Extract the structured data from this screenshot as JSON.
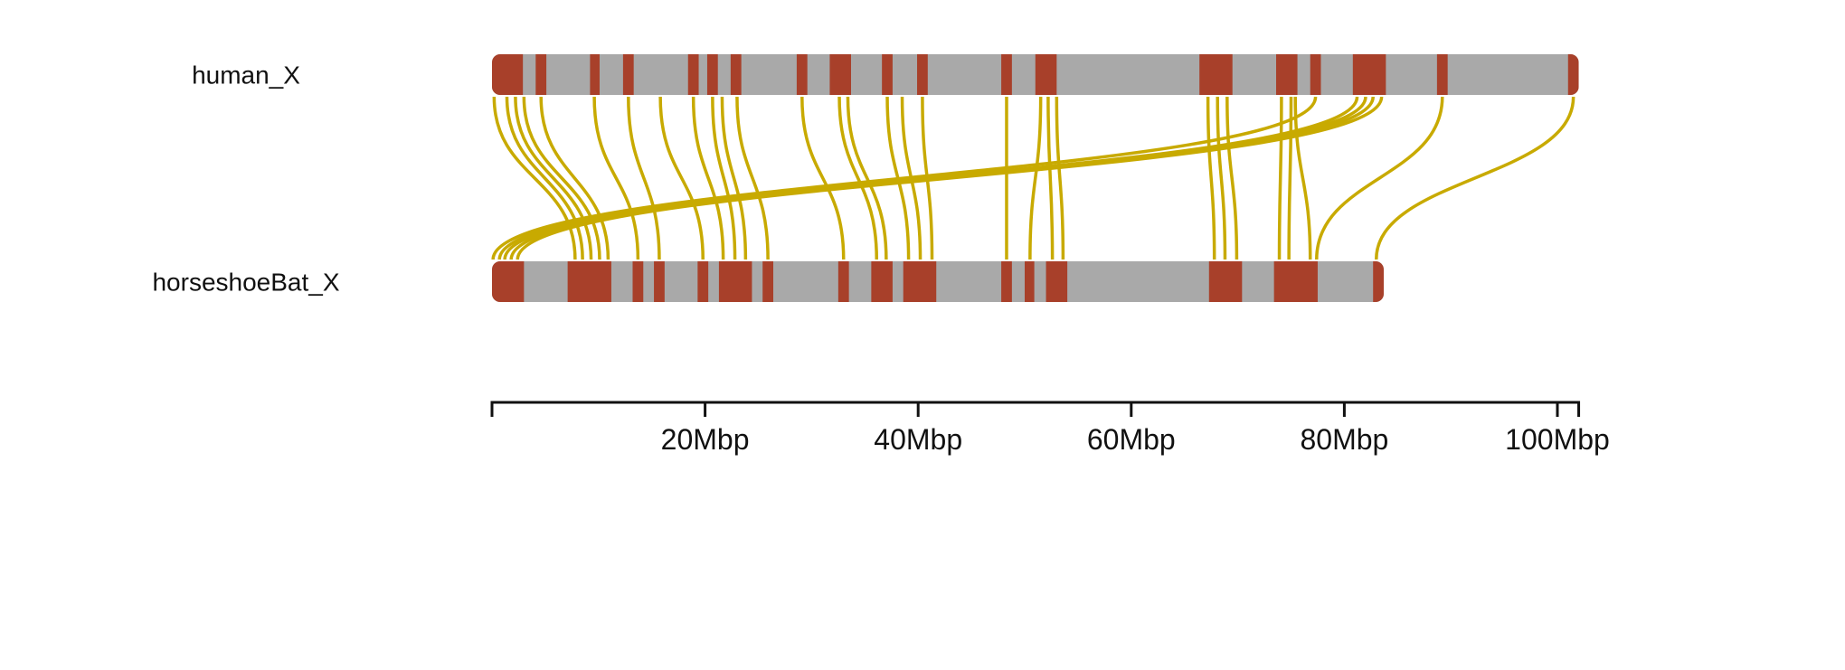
{
  "colors": {
    "chromosome_fill": "#a9a9a9",
    "highlight_block": "#a8402a",
    "link": "#c8aa00",
    "axis": "#111111"
  },
  "chart_data": {
    "type": "synteny",
    "axis": {
      "unit": "Mbp",
      "range": [
        0,
        102
      ],
      "ticks": [
        0,
        20,
        40,
        60,
        80,
        100,
        102
      ],
      "tick_labels": [
        {
          "value": 20,
          "label": "20Mbp"
        },
        {
          "value": 40,
          "label": "40Mbp"
        },
        {
          "value": 60,
          "label": "60Mbp"
        },
        {
          "value": 80,
          "label": "80Mbp"
        },
        {
          "value": 100,
          "label": "100Mbp"
        }
      ]
    },
    "chromosomes": [
      {
        "name": "human_X",
        "length": 102,
        "blocks": [
          [
            0,
            2.9
          ],
          [
            4.1,
            5.1
          ],
          [
            9.2,
            10.1
          ],
          [
            12.3,
            13.3
          ],
          [
            18.4,
            19.4
          ],
          [
            20.2,
            21.2
          ],
          [
            22.4,
            23.4
          ],
          [
            28.6,
            29.6
          ],
          [
            31.7,
            33.7
          ],
          [
            36.6,
            37.6
          ],
          [
            39.9,
            40.9
          ],
          [
            47.8,
            48.8
          ],
          [
            51.0,
            53.0
          ],
          [
            66.4,
            69.5
          ],
          [
            73.6,
            75.6
          ],
          [
            76.8,
            77.8
          ],
          [
            80.8,
            83.9
          ],
          [
            88.7,
            89.7
          ],
          [
            101.0,
            102.0
          ]
        ]
      },
      {
        "name": "horseshoeBat_X",
        "length": 83.7,
        "blocks": [
          [
            0,
            3.0
          ],
          [
            7.1,
            11.2
          ],
          [
            13.2,
            14.2
          ],
          [
            15.2,
            16.2
          ],
          [
            19.3,
            20.3
          ],
          [
            21.3,
            24.4
          ],
          [
            25.4,
            26.4
          ],
          [
            32.5,
            33.5
          ],
          [
            35.6,
            37.6
          ],
          [
            38.6,
            41.7
          ],
          [
            47.8,
            48.8
          ],
          [
            50.0,
            50.9
          ],
          [
            52.0,
            54.0
          ],
          [
            67.3,
            70.4
          ],
          [
            73.4,
            77.5
          ],
          [
            82.7,
            83.7
          ]
        ]
      }
    ],
    "links": [
      {
        "a": 0.2,
        "b": 7.8
      },
      {
        "a": 1.4,
        "b": 8.5
      },
      {
        "a": 2.2,
        "b": 9.3
      },
      {
        "a": 3.0,
        "b": 10.1
      },
      {
        "a": 4.6,
        "b": 10.9
      },
      {
        "a": 9.6,
        "b": 13.7
      },
      {
        "a": 12.8,
        "b": 15.7
      },
      {
        "a": 15.8,
        "b": 19.8
      },
      {
        "a": 18.9,
        "b": 21.7
      },
      {
        "a": 20.7,
        "b": 22.8
      },
      {
        "a": 21.6,
        "b": 23.8
      },
      {
        "a": 23.0,
        "b": 25.9
      },
      {
        "a": 29.1,
        "b": 33.0
      },
      {
        "a": 32.6,
        "b": 36.1
      },
      {
        "a": 33.4,
        "b": 37.0
      },
      {
        "a": 37.1,
        "b": 39.1
      },
      {
        "a": 38.5,
        "b": 40.2
      },
      {
        "a": 40.4,
        "b": 41.3
      },
      {
        "a": 48.3,
        "b": 48.3
      },
      {
        "a": 51.5,
        "b": 50.5
      },
      {
        "a": 52.2,
        "b": 52.6
      },
      {
        "a": 53.0,
        "b": 53.6
      },
      {
        "a": 67.2,
        "b": 67.8
      },
      {
        "a": 68.1,
        "b": 68.8
      },
      {
        "a": 69.0,
        "b": 69.9
      },
      {
        "a": 74.1,
        "b": 73.9
      },
      {
        "a": 75.0,
        "b": 74.8
      },
      {
        "a": 75.4,
        "b": 76.8
      },
      {
        "a": 77.3,
        "b": 0.1
      },
      {
        "a": 81.2,
        "b": 0.7
      },
      {
        "a": 82.0,
        "b": 1.2
      },
      {
        "a": 82.7,
        "b": 1.8
      },
      {
        "a": 83.5,
        "b": 2.4
      },
      {
        "a": 89.2,
        "b": 77.4
      },
      {
        "a": 101.5,
        "b": 83.0
      }
    ]
  }
}
